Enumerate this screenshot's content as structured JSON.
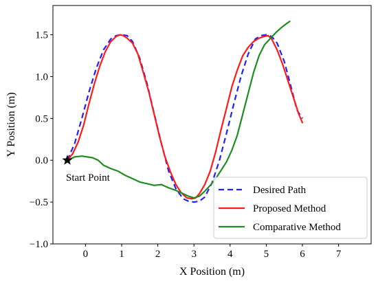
{
  "chart_data": {
    "type": "line",
    "xlabel": "X Position (m)",
    "ylabel": "Y Position (m)",
    "xlim": [
      -0.9,
      7.9
    ],
    "ylim": [
      -1.0,
      1.85
    ],
    "xticks": [
      0,
      1,
      2,
      3,
      4,
      5,
      6,
      7
    ],
    "yticks": [
      -1.0,
      -0.5,
      0.0,
      0.5,
      1.0,
      1.5
    ],
    "xtick_labels": [
      "0",
      "1",
      "2",
      "3",
      "4",
      "5",
      "6",
      "7"
    ],
    "ytick_labels": [
      "−1.0",
      "−0.5",
      "0.0",
      "0.5",
      "1.0",
      "1.5"
    ],
    "grid": false,
    "legend_position": "lower-right",
    "series": [
      {
        "name": "Desired Path",
        "color": "#1f1fff",
        "style": "dashed",
        "x": [
          -0.5,
          -0.3,
          -0.1,
          0.1,
          0.3,
          0.5,
          0.7,
          0.85,
          1.0,
          1.15,
          1.3,
          1.5,
          1.7,
          1.9,
          2.1,
          2.3,
          2.5,
          2.7,
          2.85,
          3.0,
          3.15,
          3.3,
          3.5,
          3.7,
          3.9,
          4.1,
          4.3,
          4.5,
          4.7,
          4.85,
          5.0,
          5.15,
          5.3,
          5.5,
          5.7,
          5.85,
          6.0
        ],
        "y": [
          0.0,
          0.2,
          0.5,
          0.82,
          1.1,
          1.32,
          1.45,
          1.49,
          1.5,
          1.49,
          1.42,
          1.22,
          0.92,
          0.56,
          0.2,
          -0.13,
          -0.34,
          -0.46,
          -0.49,
          -0.5,
          -0.49,
          -0.44,
          -0.27,
          -0.01,
          0.32,
          0.67,
          1.0,
          1.27,
          1.45,
          1.49,
          1.5,
          1.48,
          1.4,
          1.18,
          0.85,
          0.6,
          0.5
        ]
      },
      {
        "name": "Proposed Method",
        "color": "#ff1a1a",
        "style": "solid",
        "x": [
          -0.5,
          -0.35,
          -0.2,
          -0.05,
          0.1,
          0.25,
          0.4,
          0.55,
          0.7,
          0.85,
          0.95,
          1.05,
          1.15,
          1.3,
          1.45,
          1.6,
          1.75,
          1.9,
          2.05,
          2.2,
          2.35,
          2.5,
          2.65,
          2.8,
          2.95,
          3.05,
          3.15,
          3.3,
          3.45,
          3.6,
          3.75,
          3.9,
          4.05,
          4.2,
          4.35,
          4.5,
          4.65,
          4.8,
          4.95,
          5.05,
          5.15,
          5.3,
          5.45,
          5.6,
          5.75,
          5.9,
          6.0
        ],
        "y": [
          0.0,
          0.08,
          0.22,
          0.42,
          0.68,
          0.92,
          1.13,
          1.3,
          1.42,
          1.48,
          1.5,
          1.49,
          1.46,
          1.4,
          1.27,
          1.05,
          0.82,
          0.55,
          0.28,
          0.04,
          -0.14,
          -0.29,
          -0.39,
          -0.45,
          -0.46,
          -0.45,
          -0.4,
          -0.29,
          -0.13,
          0.1,
          0.37,
          0.62,
          0.88,
          1.08,
          1.25,
          1.35,
          1.42,
          1.46,
          1.48,
          1.49,
          1.45,
          1.32,
          1.15,
          0.95,
          0.75,
          0.55,
          0.45
        ]
      },
      {
        "name": "Comparative Method",
        "color": "#1f8c1f",
        "style": "solid",
        "x": [
          -0.5,
          -0.3,
          -0.1,
          0.05,
          0.2,
          0.35,
          0.5,
          0.7,
          0.9,
          1.1,
          1.3,
          1.5,
          1.7,
          1.9,
          2.1,
          2.3,
          2.5,
          2.7,
          2.85,
          3.0,
          3.15,
          3.3,
          3.45,
          3.6,
          3.75,
          3.9,
          4.05,
          4.2,
          4.35,
          4.5,
          4.65,
          4.8,
          4.95,
          5.1,
          5.25,
          5.4,
          5.55,
          5.65
        ],
        "y": [
          0.0,
          0.04,
          0.05,
          0.04,
          0.03,
          0.0,
          -0.06,
          -0.1,
          -0.13,
          -0.18,
          -0.22,
          -0.26,
          -0.28,
          -0.3,
          -0.29,
          -0.33,
          -0.36,
          -0.4,
          -0.43,
          -0.45,
          -0.43,
          -0.37,
          -0.3,
          -0.22,
          -0.12,
          -0.02,
          0.12,
          0.3,
          0.55,
          0.8,
          1.05,
          1.25,
          1.38,
          1.45,
          1.52,
          1.58,
          1.63,
          1.66
        ]
      }
    ],
    "annotation": {
      "label": "Start Point",
      "x": -0.5,
      "y": 0.0,
      "marker": "star",
      "marker_color": "#000000"
    }
  }
}
